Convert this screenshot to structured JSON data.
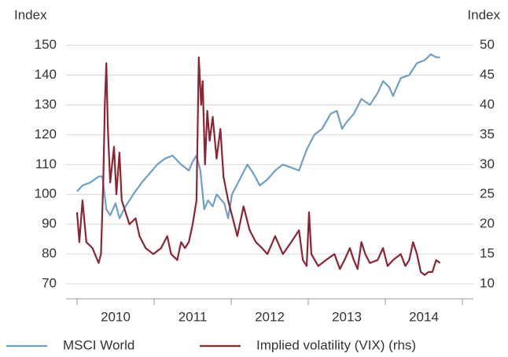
{
  "chart_data": {
    "type": "line",
    "y_label": "Index",
    "y2_label": "Index",
    "categories": [
      "2010",
      "2011",
      "2012",
      "2013",
      "2014"
    ],
    "xlim": [
      2010,
      2015
    ],
    "xticks": [
      2010,
      2011,
      2012,
      2013,
      2014,
      2015
    ],
    "ylim": [
      65,
      152
    ],
    "yticks": [
      70,
      80,
      90,
      100,
      110,
      120,
      130,
      140,
      150
    ],
    "y2lim": [
      7.5,
      51
    ],
    "y2ticks": [
      10,
      15,
      20,
      25,
      30,
      35,
      40,
      45,
      50
    ],
    "grid": true,
    "series": [
      {
        "name": "MSCI World",
        "color": "#6f9fc2",
        "x": [
          2010.0,
          2010.07,
          2010.17,
          2010.28,
          2010.33,
          2010.38,
          2010.43,
          2010.5,
          2010.55,
          2010.63,
          2010.73,
          2010.84,
          2010.94,
          2011.04,
          2011.14,
          2011.24,
          2011.35,
          2011.45,
          2011.5,
          2011.55,
          2011.6,
          2011.65,
          2011.7,
          2011.76,
          2011.81,
          2011.91,
          2011.96,
          2012.01,
          2012.11,
          2012.21,
          2012.29,
          2012.37,
          2012.47,
          2012.57,
          2012.67,
          2012.78,
          2012.88,
          2012.98,
          2013.08,
          2013.18,
          2013.29,
          2013.37,
          2013.44,
          2013.49,
          2013.59,
          2013.69,
          2013.8,
          2013.9,
          2013.97,
          2014.05,
          2014.1,
          2014.15,
          2014.2,
          2014.31,
          2014.41,
          2014.51,
          2014.59,
          2014.66,
          2014.71
        ],
        "values": [
          101,
          103,
          104,
          106,
          106,
          95,
          93,
          97,
          92,
          96,
          100,
          104,
          107,
          110,
          112,
          113,
          110,
          108,
          111,
          113,
          108,
          95,
          98,
          96,
          100,
          97,
          92,
          100,
          105,
          110,
          107,
          103,
          105,
          108,
          110,
          109,
          108,
          115,
          120,
          122,
          127,
          128,
          122,
          124,
          127,
          132,
          130,
          134,
          138,
          136,
          133,
          136,
          139,
          140,
          144,
          145,
          147,
          146,
          146
        ]
      },
      {
        "name": "Implied volatility (VIX) (rhs)",
        "color": "#8c2433",
        "axis": "y2",
        "x": [
          2010.0,
          2010.03,
          2010.07,
          2010.12,
          2010.2,
          2010.28,
          2010.31,
          2010.34,
          2010.36,
          2010.38,
          2010.4,
          2010.43,
          2010.48,
          2010.51,
          2010.55,
          2010.58,
          2010.63,
          2010.68,
          2010.76,
          2010.81,
          2010.89,
          2010.99,
          2011.09,
          2011.17,
          2011.22,
          2011.3,
          2011.35,
          2011.4,
          2011.45,
          2011.5,
          2011.55,
          2011.58,
          2011.61,
          2011.63,
          2011.66,
          2011.69,
          2011.72,
          2011.76,
          2011.81,
          2011.86,
          2011.9,
          2011.96,
          2012.02,
          2012.08,
          2012.16,
          2012.24,
          2012.32,
          2012.4,
          2012.47,
          2012.57,
          2012.67,
          2012.78,
          2012.88,
          2012.93,
          2012.98,
          2013.01,
          2013.04,
          2013.13,
          2013.23,
          2013.34,
          2013.41,
          2013.47,
          2013.54,
          2013.59,
          2013.64,
          2013.69,
          2013.74,
          2013.8,
          2013.9,
          2013.97,
          2014.03,
          2014.1,
          2014.2,
          2014.26,
          2014.31,
          2014.36,
          2014.41,
          2014.46,
          2014.51,
          2014.56,
          2014.61,
          2014.66,
          2014.71
        ],
        "values": [
          22,
          17,
          24,
          17,
          16,
          13.5,
          15,
          27,
          40,
          47,
          36,
          27,
          33,
          25,
          32,
          24,
          22,
          20,
          21,
          18,
          16,
          15,
          16,
          18,
          15,
          14,
          17,
          16,
          17,
          20,
          24,
          48,
          40,
          44,
          30,
          39,
          34,
          38,
          31,
          36,
          28,
          24,
          21,
          18,
          23,
          19,
          17,
          16,
          15,
          18,
          15,
          17,
          19,
          14,
          13,
          22,
          15,
          13,
          14,
          15,
          12.5,
          14,
          16,
          14,
          12.5,
          17,
          15,
          13.5,
          14,
          16,
          13,
          14,
          15,
          13,
          14,
          17,
          15,
          12,
          11.5,
          12,
          12,
          14,
          13.5
        ]
      }
    ]
  }
}
